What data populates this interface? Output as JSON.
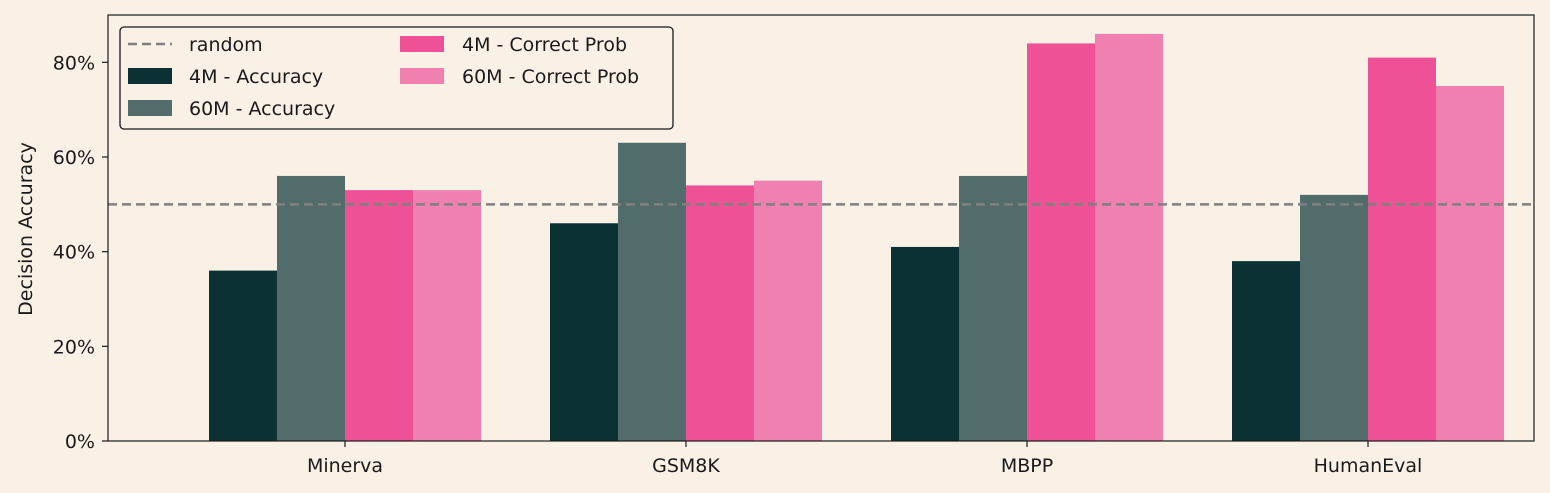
{
  "chart_data": {
    "type": "bar",
    "title": "",
    "xlabel": "",
    "ylabel": "Decision Accuracy",
    "ylim": [
      0,
      90
    ],
    "yticks": [
      0,
      20,
      40,
      60,
      80
    ],
    "ytick_labels": [
      "0%",
      "20%",
      "40%",
      "60%",
      "80%"
    ],
    "categories": [
      "Minerva",
      "GSM8K",
      "MBPP",
      "HumanEval"
    ],
    "series": [
      {
        "name": "4M - Accuracy",
        "color": "#0b3135",
        "values": [
          36,
          46,
          41,
          38
        ]
      },
      {
        "name": "60M - Accuracy",
        "color": "#526b6b",
        "values": [
          56,
          63,
          56,
          52
        ]
      },
      {
        "name": "4M - Correct Prob",
        "color": "#ef5197",
        "values": [
          53,
          54,
          84,
          81
        ]
      },
      {
        "name": "60M - Correct Prob",
        "color": "#f080b0",
        "values": [
          53,
          55,
          86,
          75
        ]
      }
    ],
    "reference_line": {
      "name": "random",
      "value": 50,
      "color": "#808080",
      "style": "dashed"
    },
    "legend_location": "upper-left",
    "grid": false,
    "background_color": "#f9f0e6"
  }
}
